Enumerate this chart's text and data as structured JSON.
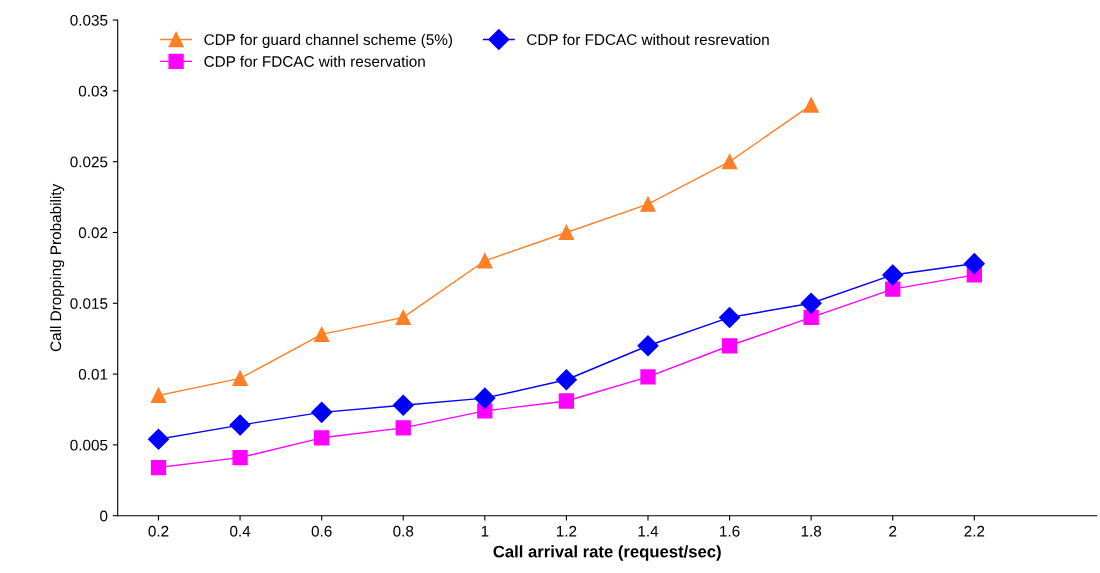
{
  "chart_data": {
    "type": "line",
    "xlabel": "Call arrival rate (request/sec)",
    "ylabel": "Call Dropping Probability",
    "x": [
      0.2,
      0.4,
      0.6,
      0.8,
      1.0,
      1.2,
      1.4,
      1.6,
      1.8,
      2.0,
      2.2
    ],
    "series": [
      {
        "name": "CDP for guard channel scheme (5%)",
        "color": "#ff7f27",
        "marker": "triangle",
        "values": [
          0.0085,
          0.0097,
          0.0128,
          0.014,
          0.018,
          0.02,
          0.022,
          0.025,
          0.029,
          null,
          null
        ]
      },
      {
        "name": "CDP for FDCAC with reservation",
        "color": "#ff00ff",
        "marker": "square",
        "values": [
          0.0034,
          0.0041,
          0.0055,
          0.0062,
          0.0074,
          0.0081,
          0.0098,
          0.012,
          0.014,
          0.016,
          0.017
        ]
      },
      {
        "name": "CDP for FDCAC without resrevation",
        "color": "#0000ff",
        "marker": "diamond",
        "values": [
          0.0054,
          0.0064,
          0.0073,
          0.0078,
          0.0083,
          0.0096,
          0.012,
          0.014,
          0.015,
          0.017,
          0.0178
        ]
      }
    ],
    "xlim": [
      0.1,
      2.5
    ],
    "xticks": [
      0.2,
      0.4,
      0.6,
      0.8,
      1,
      1.2,
      1.4,
      1.6,
      1.8,
      2,
      2.2
    ],
    "ylim": [
      0,
      0.035
    ],
    "yticks": [
      0,
      0.005,
      0.01,
      0.015,
      0.02,
      0.025,
      0.03,
      0.035
    ],
    "grid": false,
    "legend": "top left"
  }
}
